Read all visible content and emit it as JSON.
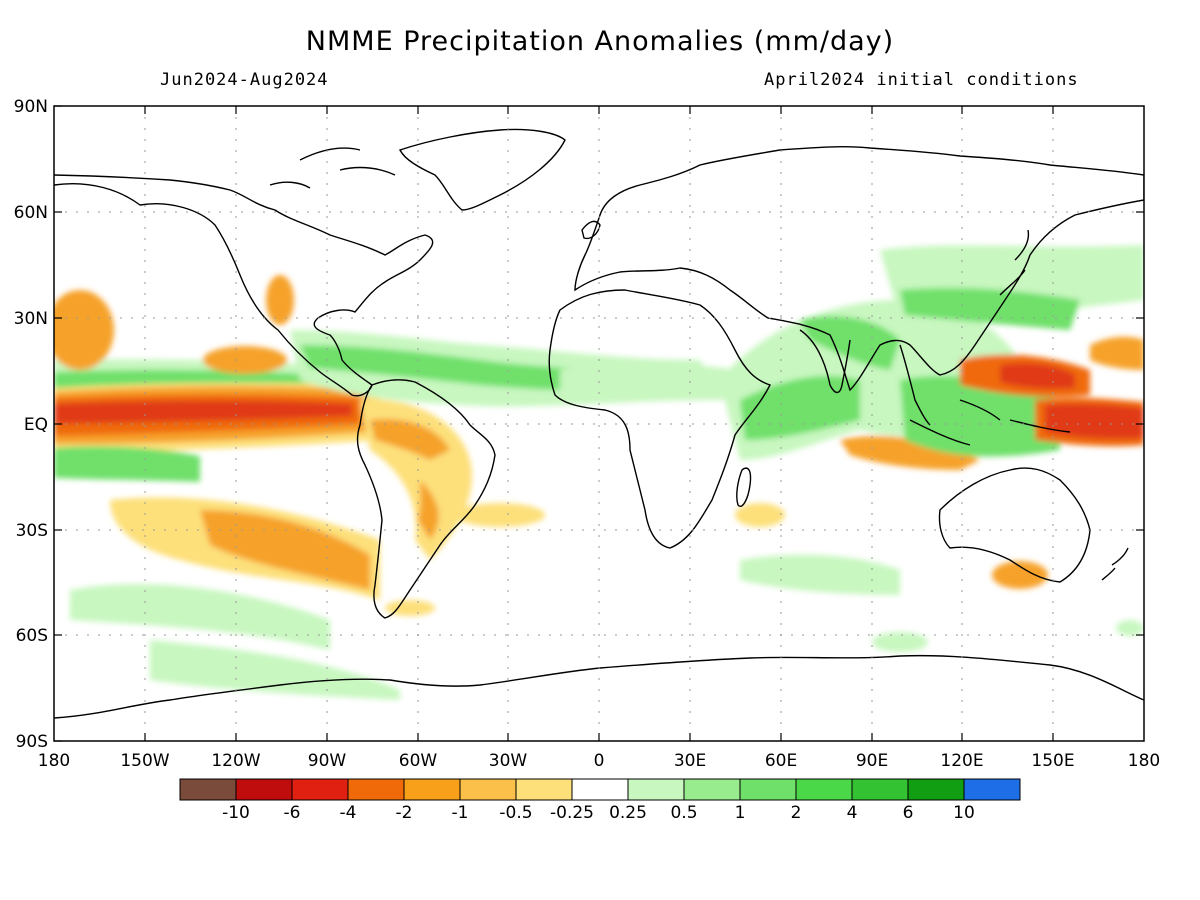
{
  "header": {
    "title": "NMME Precipitation Anomalies (mm/day)",
    "period": "Jun2024-Aug2024",
    "init": "April2024 initial conditions"
  },
  "axes": {
    "lat_ticks": [
      "90N",
      "60N",
      "30N",
      "EQ",
      "30S",
      "60S",
      "90S"
    ],
    "lon_ticks": [
      "180",
      "150W",
      "120W",
      "90W",
      "60W",
      "30W",
      "0",
      "30E",
      "60E",
      "90E",
      "120E",
      "150E",
      "180"
    ]
  },
  "colorbar": {
    "labels": [
      "-10",
      "-6",
      "-4",
      "-2",
      "-1",
      "-0.5",
      "-0.25",
      "0.25",
      "0.5",
      "1",
      "2",
      "4",
      "6",
      "10"
    ],
    "colors": [
      "#7a4a3a",
      "#bf0d0d",
      "#e02010",
      "#f06a0a",
      "#f8a01a",
      "#fbc04a",
      "#fde07a",
      "#ffffff",
      "#c8f7c0",
      "#98ec8e",
      "#6fe06a",
      "#4ad848",
      "#32c232",
      "#129e12",
      "#1e6ee8"
    ]
  },
  "colors": {
    "dry_strong": "#e03a14",
    "dry_moderate": "#f6a22a",
    "dry_weak": "#fde07a",
    "wet_weak": "#c8f7c0",
    "wet_moderate": "#6fe06a",
    "wet_strong": "#32c232"
  }
}
